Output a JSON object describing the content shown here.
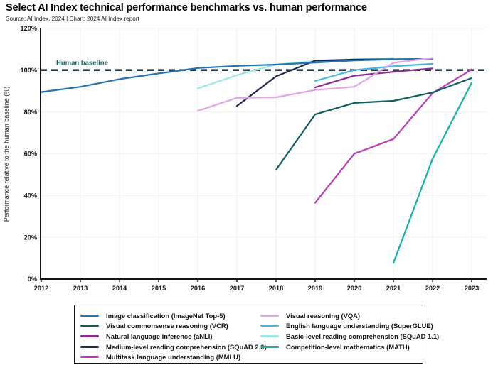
{
  "header": {
    "title": "Select AI Index technical performance benchmarks vs. human performance",
    "source": "Source: AI Index, 2024 | Chart: 2024 AI Index report"
  },
  "chart_data": {
    "type": "line",
    "title": "Select AI Index technical performance benchmarks vs. human performance",
    "xlabel": "",
    "ylabel": "Performance relative to the human baseline (%)",
    "xlim": [
      2012,
      2023
    ],
    "ylim": [
      0,
      120
    ],
    "x_ticks": [
      2012,
      2013,
      2014,
      2015,
      2016,
      2017,
      2018,
      2019,
      2020,
      2021,
      2022,
      2023
    ],
    "y_ticks": [
      0,
      20,
      40,
      60,
      80,
      100,
      120
    ],
    "y_tick_suffix": "%",
    "grid": true,
    "legend_position": "bottom",
    "baseline": {
      "value": 100,
      "label": "Human baseline",
      "line_color": "#1b3a4a",
      "label_color": "#1e6066",
      "style": "dashed"
    },
    "series": [
      {
        "key": "imagenet",
        "name": "Image classification (ImageNet Top-5)",
        "color": "#2173b4",
        "points": [
          [
            2012,
            89.5
          ],
          [
            2013,
            92.0
          ],
          [
            2014,
            95.7
          ],
          [
            2015,
            98.4
          ],
          [
            2016,
            101.0
          ],
          [
            2017,
            102.0
          ],
          [
            2018,
            102.6
          ],
          [
            2019,
            103.6
          ],
          [
            2020,
            104.6
          ],
          [
            2021,
            105.2
          ],
          [
            2022,
            105.4
          ]
        ]
      },
      {
        "key": "vcr",
        "name": "Visual commonsense reasoning (VCR)",
        "color": "#0d5f63",
        "points": [
          [
            2018,
            52.3
          ],
          [
            2019,
            78.8
          ],
          [
            2020,
            84.3
          ],
          [
            2021,
            85.3
          ],
          [
            2022,
            89.3
          ],
          [
            2023,
            96.2
          ]
        ]
      },
      {
        "key": "anli",
        "name": "Natural language inference (aNLI)",
        "color": "#8d2c8f",
        "points": [
          [
            2019,
            91.7
          ],
          [
            2020,
            97.3
          ],
          [
            2021,
            99.2
          ],
          [
            2022,
            100.8
          ]
        ]
      },
      {
        "key": "squad2",
        "name": "Medium-level reading comprehension (SQuAD 2.0)",
        "color": "#1d2b53",
        "points": [
          [
            2017,
            82.8
          ],
          [
            2018,
            97.0
          ],
          [
            2019,
            104.5
          ],
          [
            2020,
            105.0
          ],
          [
            2021,
            105.2
          ]
        ]
      },
      {
        "key": "mmlu",
        "name": "Multitask language understanding (MMLU)",
        "color": "#bb3abb",
        "points": [
          [
            2019,
            36.5
          ],
          [
            2020,
            60.0
          ],
          [
            2021,
            67.0
          ],
          [
            2022,
            89.0
          ],
          [
            2023,
            100.3
          ]
        ]
      },
      {
        "key": "vqa",
        "name": "Visual reasoning (VQA)",
        "color": "#e2a3e8",
        "points": [
          [
            2016,
            80.5
          ],
          [
            2017,
            86.7
          ],
          [
            2018,
            87.0
          ],
          [
            2019,
            90.5
          ],
          [
            2020,
            92.0
          ],
          [
            2021,
            103.5
          ],
          [
            2022,
            105.8
          ]
        ]
      },
      {
        "key": "superglue",
        "name": "English language understanding (SuperGLUE)",
        "color": "#47b7e1",
        "points": [
          [
            2019,
            94.8
          ],
          [
            2020,
            100.0
          ],
          [
            2021,
            101.8
          ],
          [
            2022,
            103.0
          ]
        ]
      },
      {
        "key": "squad1",
        "name": "Basic-level reading comprehension (SQuAD 1.1)",
        "color": "#9fe9e4",
        "points": [
          [
            2016,
            91.2
          ],
          [
            2017,
            97.6
          ],
          [
            2018,
            102.7
          ],
          [
            2019,
            104.4
          ],
          [
            2020,
            105.2
          ],
          [
            2021,
            105.8
          ]
        ]
      },
      {
        "key": "math",
        "name": "Competition-level mathematics (MATH)",
        "color": "#10b2a7",
        "points": [
          [
            2021,
            7.7
          ],
          [
            2022,
            57.5
          ],
          [
            2023,
            94.0
          ]
        ]
      }
    ],
    "draw_order": [
      7,
      6,
      8,
      4,
      2,
      1,
      3,
      0,
      5
    ],
    "legend_split": 5
  }
}
